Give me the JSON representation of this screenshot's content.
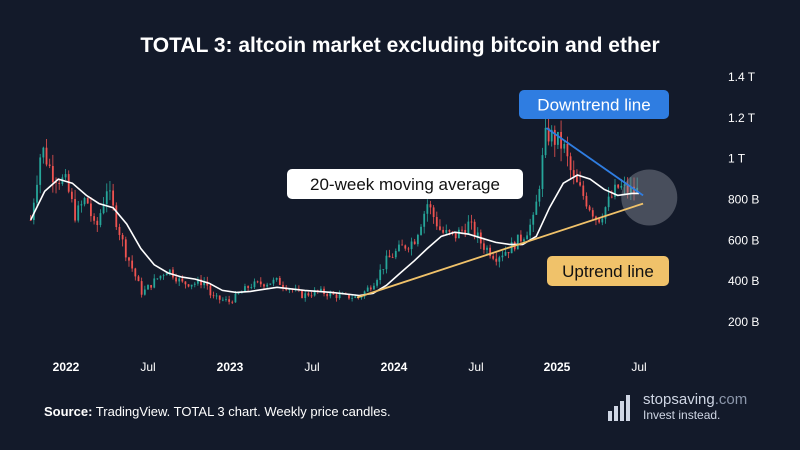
{
  "title": "TOTAL 3: altcoin market excluding bitcoin and ether",
  "source": {
    "label": "Source:",
    "text": "TradingView. TOTAL 3 chart. Weekly price candles."
  },
  "brand": {
    "name": "stopsaving",
    "tld": ".com",
    "tagline": "Invest instead.",
    "icon": "bar-chart-icon"
  },
  "colors": {
    "background": "#131a2a",
    "candle_up": "#26a69a",
    "candle_down": "#ef5350",
    "moving_average": "#ffffff",
    "downtrend": "#2f7de1",
    "uptrend": "#f0c26a",
    "axis_text": "#ffffff"
  },
  "chart_data": {
    "type": "candlestick",
    "title": "TOTAL 3: altcoin market excluding bitcoin and ether",
    "x_ticks": [
      "2022",
      "Jul",
      "2023",
      "Jul",
      "2024",
      "Jul",
      "2025",
      "Jul"
    ],
    "x_tick_dates": [
      "2022-01-01",
      "2022-07-01",
      "2023-01-01",
      "2023-07-01",
      "2024-01-01",
      "2024-07-01",
      "2025-01-01",
      "2025-07-01"
    ],
    "y_ticks": [
      "1.4 T",
      "1.2 T",
      "1 T",
      "800 B",
      "600 B",
      "400 B",
      "200 B"
    ],
    "y_tick_values_billions": [
      1400,
      1200,
      1000,
      800,
      600,
      400,
      200
    ],
    "y_axis_position": "right",
    "ylim_billions": [
      200,
      1400
    ],
    "grid": false,
    "price_path_billions": [
      [
        "2021-10-15",
        700
      ],
      [
        "2021-11-08",
        1060
      ],
      [
        "2021-12-01",
        930
      ],
      [
        "2022-01-01",
        880
      ],
      [
        "2022-01-22",
        720
      ],
      [
        "2022-02-15",
        810
      ],
      [
        "2022-03-07",
        640
      ],
      [
        "2022-04-01",
        860
      ],
      [
        "2022-05-10",
        560
      ],
      [
        "2022-06-18",
        340
      ],
      [
        "2022-07-15",
        400
      ],
      [
        "2022-08-15",
        460
      ],
      [
        "2022-09-15",
        390
      ],
      [
        "2022-10-15",
        390
      ],
      [
        "2022-11-08",
        400
      ],
      [
        "2022-11-20",
        320
      ],
      [
        "2022-12-31",
        300
      ],
      [
        "2023-02-15",
        380
      ],
      [
        "2023-04-15",
        400
      ],
      [
        "2023-06-10",
        330
      ],
      [
        "2023-07-15",
        350
      ],
      [
        "2023-08-20",
        330
      ],
      [
        "2023-10-15",
        320
      ],
      [
        "2023-11-15",
        390
      ],
      [
        "2023-12-15",
        500
      ],
      [
        "2024-01-15",
        560
      ],
      [
        "2024-02-15",
        600
      ],
      [
        "2024-03-15",
        780
      ],
      [
        "2024-04-15",
        640
      ],
      [
        "2024-05-15",
        620
      ],
      [
        "2024-06-15",
        680
      ],
      [
        "2024-07-15",
        580
      ],
      [
        "2024-08-15",
        520
      ],
      [
        "2024-09-15",
        560
      ],
      [
        "2024-10-15",
        620
      ],
      [
        "2024-11-10",
        700
      ],
      [
        "2024-12-08",
        1130
      ],
      [
        "2025-01-15",
        1060
      ],
      [
        "2025-02-05",
        900
      ],
      [
        "2025-02-28",
        820
      ],
      [
        "2025-04-01",
        700
      ],
      [
        "2025-05-15",
        860
      ],
      [
        "2025-06-15",
        840
      ],
      [
        "2025-07-01",
        840
      ]
    ],
    "moving_average": {
      "name": "20-week moving average",
      "points_billions": [
        [
          "2021-10-15",
          700
        ],
        [
          "2021-11-15",
          840
        ],
        [
          "2021-12-15",
          900
        ],
        [
          "2022-01-15",
          880
        ],
        [
          "2022-02-15",
          820
        ],
        [
          "2022-03-15",
          780
        ],
        [
          "2022-04-15",
          760
        ],
        [
          "2022-05-15",
          680
        ],
        [
          "2022-06-15",
          560
        ],
        [
          "2022-07-15",
          480
        ],
        [
          "2022-08-15",
          440
        ],
        [
          "2022-09-15",
          420
        ],
        [
          "2022-10-15",
          410
        ],
        [
          "2022-11-15",
          390
        ],
        [
          "2022-12-15",
          355
        ],
        [
          "2023-01-15",
          345
        ],
        [
          "2023-02-15",
          350
        ],
        [
          "2023-04-15",
          370
        ],
        [
          "2023-06-15",
          355
        ],
        [
          "2023-08-15",
          345
        ],
        [
          "2023-10-15",
          330
        ],
        [
          "2023-11-15",
          340
        ],
        [
          "2023-12-15",
          380
        ],
        [
          "2024-01-15",
          440
        ],
        [
          "2024-02-15",
          500
        ],
        [
          "2024-03-15",
          560
        ],
        [
          "2024-04-15",
          620
        ],
        [
          "2024-05-15",
          640
        ],
        [
          "2024-06-15",
          630
        ],
        [
          "2024-07-15",
          610
        ],
        [
          "2024-08-15",
          590
        ],
        [
          "2024-09-15",
          580
        ],
        [
          "2024-10-15",
          580
        ],
        [
          "2024-11-15",
          620
        ],
        [
          "2024-12-15",
          760
        ],
        [
          "2025-01-15",
          880
        ],
        [
          "2025-02-15",
          920
        ],
        [
          "2025-03-15",
          900
        ],
        [
          "2025-04-15",
          850
        ],
        [
          "2025-05-15",
          820
        ],
        [
          "2025-06-15",
          830
        ],
        [
          "2025-07-01",
          830
        ]
      ]
    },
    "trendlines": [
      {
        "name": "Downtrend line",
        "from": [
          "2024-12-08",
          1150
        ],
        "to": [
          "2025-07-10",
          820
        ]
      },
      {
        "name": "Uptrend line",
        "from": [
          "2023-10-10",
          320
        ],
        "to": [
          "2025-07-10",
          780
        ]
      }
    ],
    "annotations": [
      {
        "text": "Downtrend line",
        "style": "blue-box"
      },
      {
        "text": "20-week moving average",
        "style": "white-box"
      },
      {
        "text": "Uptrend line",
        "style": "yellow-box"
      }
    ],
    "highlight": {
      "shape": "circle",
      "center": [
        "2025-06-25",
        810
      ]
    }
  }
}
